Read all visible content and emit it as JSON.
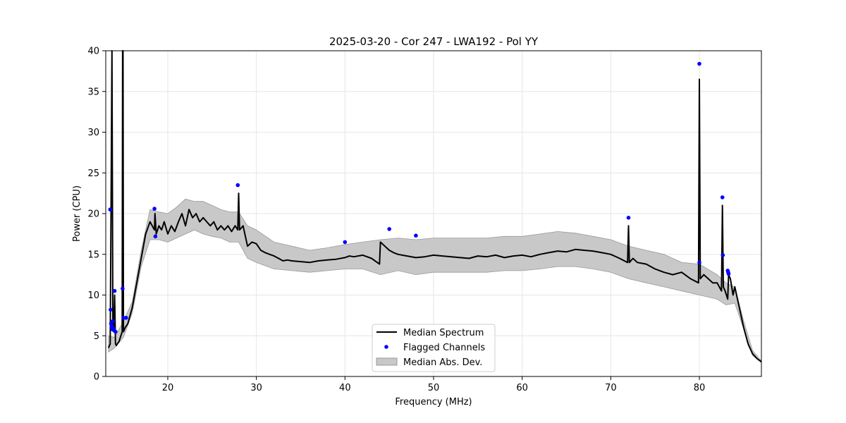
{
  "chart_data": {
    "type": "line",
    "title": "2025-03-20 - Cor 247 - LWA192 - Pol YY",
    "xlabel": "Frequency (MHz)",
    "ylabel": "Power (CPU)",
    "xlim": [
      13,
      87
    ],
    "ylim": [
      0,
      40
    ],
    "xticks": [
      20,
      30,
      40,
      50,
      60,
      70,
      80
    ],
    "yticks": [
      0,
      5,
      10,
      15,
      20,
      25,
      30,
      35,
      40
    ],
    "grid": true,
    "legend_position": "lower-center",
    "colors": {
      "median": "#000000",
      "flagged": "#0000ff",
      "mad_fill": "#c8c8c8",
      "mad_edge": "#9a9a9a"
    },
    "series": [
      {
        "name": "Median Spectrum",
        "kind": "line",
        "x": [
          13.3,
          13.5,
          13.6,
          13.7,
          13.8,
          13.9,
          14.0,
          14.1,
          14.2,
          14.3,
          14.5,
          14.7,
          14.85,
          14.9,
          14.95,
          15.0,
          15.2,
          15.5,
          16.0,
          16.5,
          17.0,
          17.5,
          18.0,
          18.5,
          18.55,
          18.7,
          19.0,
          19.3,
          19.6,
          20.0,
          20.4,
          20.8,
          21.2,
          21.6,
          22.0,
          22.4,
          22.8,
          23.2,
          23.6,
          24.0,
          24.4,
          24.8,
          25.2,
          25.6,
          26.0,
          26.4,
          26.8,
          27.2,
          27.6,
          27.9,
          28.0,
          28.1,
          28.5,
          29.0,
          29.5,
          30.0,
          30.5,
          31.0,
          31.5,
          32.0,
          32.5,
          33.0,
          33.5,
          34.0,
          35.0,
          36.0,
          37.0,
          38.0,
          39.0,
          40.0,
          40.5,
          41.0,
          42.0,
          43.0,
          43.9,
          44.0,
          44.5,
          45.0,
          45.5,
          46.0,
          47.0,
          48.0,
          49.0,
          50.0,
          51.0,
          52.0,
          53.0,
          54.0,
          55.0,
          56.0,
          57.0,
          58.0,
          59.0,
          60.0,
          61.0,
          62.0,
          63.0,
          64.0,
          65.0,
          66.0,
          67.0,
          68.0,
          69.0,
          70.0,
          71.0,
          71.9,
          72.0,
          72.1,
          72.5,
          73.0,
          74.0,
          75.0,
          76.0,
          77.0,
          78.0,
          79.0,
          79.9,
          80.0,
          80.1,
          80.5,
          81.0,
          81.5,
          82.0,
          82.5,
          82.6,
          82.7,
          82.9,
          83.2,
          83.3,
          83.5,
          83.8,
          84.0,
          84.3,
          84.6,
          85.0,
          85.5,
          86.0,
          86.5,
          87.0
        ],
        "y": [
          3.5,
          4.0,
          20.5,
          40,
          6.0,
          5.5,
          10.0,
          4.0,
          3.8,
          4.0,
          4.3,
          5.0,
          5.5,
          40,
          40,
          5.5,
          6.0,
          6.5,
          8.5,
          11.5,
          14.5,
          17.5,
          19.0,
          18.0,
          20.0,
          17.5,
          18.5,
          18.0,
          19.0,
          17.5,
          18.5,
          17.8,
          19.0,
          20.0,
          18.5,
          20.5,
          19.5,
          20.0,
          19.0,
          19.5,
          19.0,
          18.5,
          19.0,
          18.0,
          18.5,
          18.0,
          18.5,
          17.8,
          18.5,
          18.0,
          22.5,
          18.0,
          18.5,
          16.0,
          16.5,
          16.3,
          15.5,
          15.2,
          15.0,
          14.8,
          14.5,
          14.2,
          14.3,
          14.2,
          14.1,
          14.0,
          14.2,
          14.3,
          14.4,
          14.6,
          14.8,
          14.7,
          14.9,
          14.5,
          13.8,
          16.5,
          16.0,
          15.5,
          15.2,
          15.0,
          14.8,
          14.6,
          14.7,
          14.9,
          14.8,
          14.7,
          14.6,
          14.5,
          14.8,
          14.7,
          14.9,
          14.6,
          14.8,
          14.9,
          14.7,
          15.0,
          15.2,
          15.4,
          15.3,
          15.6,
          15.5,
          15.4,
          15.2,
          15.0,
          14.5,
          14.0,
          18.5,
          14.0,
          14.5,
          14.0,
          13.8,
          13.2,
          12.8,
          12.5,
          12.8,
          12.0,
          11.5,
          36.5,
          12.0,
          12.5,
          12.0,
          11.5,
          11.5,
          10.5,
          21.0,
          11.0,
          10.5,
          9.5,
          12.5,
          12.0,
          10.0,
          11.0,
          9.5,
          8.0,
          6.0,
          4.0,
          2.8,
          2.2,
          1.8
        ]
      },
      {
        "name": "Flagged Channels",
        "kind": "scatter",
        "x": [
          13.5,
          13.55,
          13.6,
          13.65,
          13.7,
          13.75,
          13.8,
          13.85,
          13.9,
          14.0,
          14.1,
          14.9,
          15.0,
          15.3,
          18.5,
          18.6,
          27.9,
          40.0,
          45.0,
          48.0,
          72.0,
          80.0,
          80.0,
          82.6,
          82.65,
          83.2,
          83.25,
          83.3
        ],
        "y": [
          20.5,
          8.2,
          6.5,
          6.2,
          6.0,
          5.8,
          6.8,
          5.9,
          5.7,
          10.5,
          5.5,
          10.8,
          7.2,
          7.2,
          20.6,
          17.2,
          23.5,
          16.5,
          18.1,
          17.3,
          19.5,
          38.4,
          14.0,
          22.0,
          14.9,
          13.0,
          12.8,
          12.6
        ]
      },
      {
        "name": "Median Abs. Dev.",
        "kind": "band",
        "x": [
          13.3,
          14.0,
          15.0,
          16.0,
          17.0,
          18.0,
          19.0,
          20.0,
          21.0,
          22.0,
          23.0,
          24.0,
          25.0,
          26.0,
          27.0,
          28.0,
          29.0,
          30.0,
          32.0,
          34.0,
          36.0,
          38.0,
          40.0,
          42.0,
          44.0,
          46.0,
          48.0,
          50.0,
          52.0,
          54.0,
          56.0,
          58.0,
          60.0,
          62.0,
          64.0,
          66.0,
          68.0,
          70.0,
          72.0,
          74.0,
          76.0,
          78.0,
          80.0,
          82.0,
          83.0,
          84.0,
          85.0,
          86.0,
          87.0
        ],
        "lower": [
          3.0,
          3.5,
          4.8,
          7.8,
          13.5,
          16.8,
          16.8,
          16.5,
          17.0,
          17.5,
          18.0,
          17.5,
          17.2,
          17.0,
          16.5,
          16.5,
          14.5,
          14.0,
          13.2,
          13.0,
          12.8,
          13.0,
          13.2,
          13.2,
          12.5,
          13.0,
          12.5,
          12.8,
          12.8,
          12.8,
          12.8,
          13.0,
          13.0,
          13.2,
          13.5,
          13.5,
          13.2,
          12.8,
          12.0,
          11.5,
          11.0,
          10.5,
          10.0,
          9.5,
          8.8,
          9.0,
          5.8,
          2.6,
          1.7
        ],
        "upper": [
          5.0,
          4.8,
          6.8,
          9.2,
          15.5,
          20.5,
          20.2,
          20.0,
          20.8,
          21.8,
          21.5,
          21.5,
          21.0,
          20.5,
          20.2,
          20.2,
          18.5,
          18.0,
          16.5,
          16.0,
          15.5,
          15.8,
          16.2,
          16.5,
          16.8,
          17.0,
          16.8,
          17.0,
          17.0,
          17.0,
          17.0,
          17.2,
          17.2,
          17.5,
          17.8,
          17.6,
          17.2,
          16.8,
          16.0,
          15.5,
          15.0,
          14.0,
          13.8,
          12.5,
          11.5,
          11.0,
          6.8,
          3.2,
          1.9
        ]
      }
    ]
  }
}
